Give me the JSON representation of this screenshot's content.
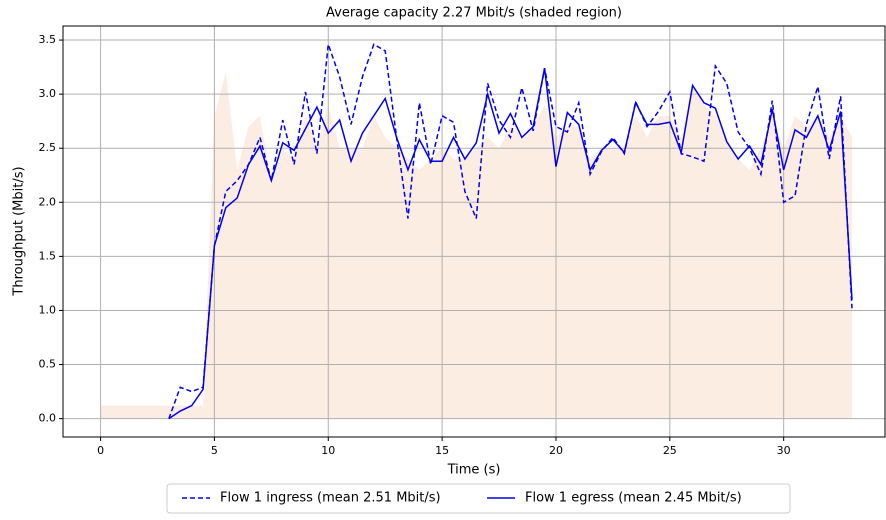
{
  "chart_data": {
    "type": "line",
    "title": "Average capacity 2.27 Mbit/s (shaded region)",
    "xlabel": "Time (s)",
    "ylabel": "Throughput (Mbit/s)",
    "xlim": [
      -1.65,
      34.45
    ],
    "ylim": [
      -0.17,
      3.63
    ],
    "xticks": [
      0,
      5,
      10,
      15,
      20,
      25,
      30
    ],
    "yticks": [
      {
        "value": 0,
        "label": "0.0"
      },
      {
        "value": 0.5,
        "label": "0.5"
      },
      {
        "value": 1,
        "label": "1.0"
      },
      {
        "value": 1.5,
        "label": "1.5"
      },
      {
        "value": 2,
        "label": "2.0"
      },
      {
        "value": 2.5,
        "label": "2.5"
      },
      {
        "value": 3,
        "label": "3.0"
      },
      {
        "value": 3.5,
        "label": "3.5"
      }
    ],
    "grid": true,
    "legend": "below",
    "area": {
      "color": "#fbede2",
      "x": [
        0,
        4.5,
        5,
        5.5,
        6,
        6.5,
        7,
        7.5,
        8,
        8.5,
        9,
        9.5,
        10,
        10.5,
        11,
        11.5,
        12,
        12.5,
        13,
        13.5,
        14,
        14.5,
        15,
        15.5,
        16,
        16.5,
        17,
        17.5,
        18,
        18.5,
        19,
        19.5,
        20,
        20.5,
        21,
        21.5,
        22,
        22.5,
        23,
        23.5,
        24,
        24.5,
        25,
        25.5,
        26,
        26.5,
        27,
        27.5,
        28,
        28.5,
        29,
        29.5,
        30,
        30.5,
        31,
        31.5,
        32,
        32.5,
        33
      ],
      "values": [
        0.12,
        0.12,
        2.8,
        3.2,
        2.3,
        2.7,
        2.8,
        2.2,
        2.5,
        2.4,
        2.8,
        2.5,
        2.9,
        2.5,
        2.5,
        2.5,
        2.8,
        2.6,
        2.5,
        2.4,
        2.3,
        2.4,
        2.5,
        2.4,
        2.4,
        2.5,
        2.6,
        2.5,
        2.7,
        2.6,
        2.7,
        2.9,
        2.6,
        2.7,
        2.7,
        2.4,
        2.5,
        2.5,
        2.5,
        2.8,
        2.6,
        2.8,
        2.8,
        2.6,
        3.1,
        2.9,
        2.8,
        2.6,
        2.4,
        2.3,
        2.5,
        2.8,
        2.5,
        2.8,
        2.7,
        2.8,
        2.6,
        2.8,
        2.6
      ]
    },
    "x": [
      3,
      3.5,
      4,
      4.5,
      5,
      5.5,
      6,
      6.5,
      7,
      7.5,
      8,
      8.5,
      9,
      9.5,
      10,
      10.5,
      11,
      11.5,
      12,
      12.5,
      13,
      13.5,
      14,
      14.5,
      15,
      15.5,
      16,
      16.5,
      17,
      17.5,
      18,
      18.5,
      19,
      19.5,
      20,
      20.5,
      21,
      21.5,
      22,
      22.5,
      23,
      23.5,
      24,
      24.5,
      25,
      25.5,
      26,
      26.5,
      27,
      27.5,
      28,
      28.5,
      29,
      29.5,
      30,
      30.5,
      31,
      31.5,
      32,
      32.5,
      33
    ],
    "series": [
      {
        "name": "Flow 1 ingress (mean 2.51 Mbit/s)",
        "color": "#0000ee",
        "dash": true,
        "values": [
          0,
          0.29,
          0.25,
          0.29,
          1.6,
          2.1,
          2.2,
          2.35,
          2.6,
          2.2,
          2.76,
          2.35,
          3.02,
          2.45,
          3.46,
          3.16,
          2.72,
          3.16,
          3.46,
          3.4,
          2.6,
          1.85,
          2.92,
          2.35,
          2.8,
          2.74,
          2.1,
          1.85,
          3.1,
          2.76,
          2.6,
          3.06,
          2.66,
          3.24,
          2.7,
          2.65,
          2.92,
          2.26,
          2.47,
          2.6,
          2.45,
          2.93,
          2.7,
          2.84,
          3.02,
          2.45,
          2.42,
          2.38,
          3.26,
          3.1,
          2.65,
          2.5,
          2.26,
          2.94,
          2.0,
          2.06,
          2.72,
          3.07,
          2.4,
          2.98,
          1.02
        ]
      },
      {
        "name": "Flow 1 egress (mean 2.45 Mbit/s)",
        "color": "#0000ee",
        "dash": false,
        "values": [
          0,
          0.07,
          0.12,
          0.27,
          1.6,
          1.95,
          2.04,
          2.35,
          2.52,
          2.2,
          2.55,
          2.48,
          2.68,
          2.88,
          2.64,
          2.76,
          2.38,
          2.64,
          2.8,
          2.96,
          2.6,
          2.3,
          2.58,
          2.38,
          2.38,
          2.6,
          2.4,
          2.55,
          3.0,
          2.64,
          2.82,
          2.6,
          2.7,
          3.24,
          2.33,
          2.83,
          2.72,
          2.3,
          2.48,
          2.58,
          2.46,
          2.92,
          2.72,
          2.72,
          2.74,
          2.46,
          3.08,
          2.92,
          2.87,
          2.56,
          2.4,
          2.52,
          2.35,
          2.86,
          2.3,
          2.67,
          2.6,
          2.8,
          2.48,
          2.84,
          1.1
        ]
      }
    ]
  }
}
